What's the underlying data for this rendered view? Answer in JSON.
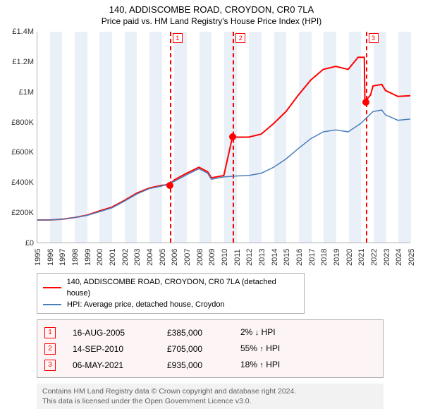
{
  "title": {
    "line1": "140, ADDISCOMBE ROAD, CROYDON, CR0 7LA",
    "line2": "Price paid vs. HM Land Registry's House Price Index (HPI)"
  },
  "chart": {
    "type": "line",
    "background_color": "#ffffff",
    "band_color": "#eaf0f7",
    "axis_color": "#b0b0b0",
    "x": {
      "min": 1995,
      "max": 2025,
      "ticks": [
        1995,
        1996,
        1997,
        1998,
        1999,
        2000,
        2001,
        2002,
        2003,
        2004,
        2005,
        2006,
        2007,
        2008,
        2009,
        2010,
        2011,
        2012,
        2013,
        2014,
        2015,
        2016,
        2017,
        2018,
        2019,
        2020,
        2021,
        2022,
        2023,
        2024,
        2025
      ],
      "label_fontsize": 11,
      "label_rotation": -90
    },
    "y": {
      "min": 0,
      "max": 1400000,
      "ticks": [
        0,
        200000,
        400000,
        600000,
        800000,
        1000000,
        1200000,
        1400000
      ],
      "tick_labels": [
        "£0",
        "£200K",
        "£400K",
        "£600K",
        "£800K",
        "£1M",
        "£1.2M",
        "£1.4M"
      ],
      "label_fontsize": 11
    },
    "bands_even_years": true,
    "series": [
      {
        "name": "property",
        "label": "140, ADDISCOMBE ROAD, CROYDON, CR0 7LA (detached house)",
        "color": "#ff0000",
        "line_width": 2,
        "points": [
          [
            1995,
            150000
          ],
          [
            1996,
            150000
          ],
          [
            1997,
            155000
          ],
          [
            1998,
            166000
          ],
          [
            1999,
            182000
          ],
          [
            2000,
            210000
          ],
          [
            2001,
            235000
          ],
          [
            2002,
            280000
          ],
          [
            2003,
            328000
          ],
          [
            2004,
            362000
          ],
          [
            2005,
            380000
          ],
          [
            2005.63,
            385000
          ],
          [
            2006,
            415000
          ],
          [
            2007,
            460000
          ],
          [
            2008,
            500000
          ],
          [
            2008.7,
            470000
          ],
          [
            2009,
            430000
          ],
          [
            2010,
            445000
          ],
          [
            2010.7,
            705000
          ],
          [
            2011,
            700000
          ],
          [
            2012,
            700000
          ],
          [
            2013,
            720000
          ],
          [
            2014,
            790000
          ],
          [
            2015,
            870000
          ],
          [
            2016,
            980000
          ],
          [
            2017,
            1080000
          ],
          [
            2018,
            1150000
          ],
          [
            2019,
            1170000
          ],
          [
            2020,
            1150000
          ],
          [
            2020.8,
            1230000
          ],
          [
            2021.3,
            1230000
          ],
          [
            2021.35,
            935000
          ],
          [
            2021.8,
            980000
          ],
          [
            2022,
            1040000
          ],
          [
            2022.7,
            1050000
          ],
          [
            2023,
            1010000
          ],
          [
            2024,
            970000
          ],
          [
            2025,
            975000
          ]
        ]
      },
      {
        "name": "hpi",
        "label": "HPI: Average price, detached house, Croydon",
        "color": "#4a7ebb",
        "line_width": 1.5,
        "points": [
          [
            1995,
            150000
          ],
          [
            1996,
            150000
          ],
          [
            1997,
            155000
          ],
          [
            1998,
            166000
          ],
          [
            1999,
            180000
          ],
          [
            2000,
            205000
          ],
          [
            2001,
            230000
          ],
          [
            2002,
            275000
          ],
          [
            2003,
            322000
          ],
          [
            2004,
            358000
          ],
          [
            2005,
            375000
          ],
          [
            2006,
            405000
          ],
          [
            2007,
            450000
          ],
          [
            2008,
            490000
          ],
          [
            2008.7,
            460000
          ],
          [
            2009,
            420000
          ],
          [
            2010,
            436000
          ],
          [
            2011,
            442000
          ],
          [
            2012,
            445000
          ],
          [
            2013,
            460000
          ],
          [
            2014,
            500000
          ],
          [
            2015,
            555000
          ],
          [
            2016,
            625000
          ],
          [
            2017,
            690000
          ],
          [
            2018,
            735000
          ],
          [
            2019,
            748000
          ],
          [
            2020,
            735000
          ],
          [
            2021,
            790000
          ],
          [
            2022,
            870000
          ],
          [
            2022.7,
            880000
          ],
          [
            2023,
            848000
          ],
          [
            2024,
            812000
          ],
          [
            2025,
            820000
          ]
        ]
      }
    ],
    "sale_markers": [
      {
        "n": "1",
        "year": 2005.63,
        "price": 385000
      },
      {
        "n": "2",
        "year": 2010.7,
        "price": 705000
      },
      {
        "n": "3",
        "year": 2021.35,
        "price": 935000
      }
    ]
  },
  "legend": {
    "border_color": "#b0b0b0",
    "fontsize": 11
  },
  "sales_table": {
    "rows": [
      {
        "n": "1",
        "date": "16-AUG-2005",
        "price": "£385,000",
        "pct": "2%",
        "dir": "down",
        "dir_glyph": "↓",
        "suffix": "HPI"
      },
      {
        "n": "2",
        "date": "14-SEP-2010",
        "price": "£705,000",
        "pct": "55%",
        "dir": "up",
        "dir_glyph": "↑",
        "suffix": "HPI"
      },
      {
        "n": "3",
        "date": "06-MAY-2021",
        "price": "£935,000",
        "pct": "18%",
        "dir": "up",
        "dir_glyph": "↑",
        "suffix": "HPI"
      }
    ]
  },
  "footer": {
    "line1": "Contains HM Land Registry data © Crown copyright and database right 2024.",
    "line2": "This data is licensed under the Open Government Licence v3.0."
  }
}
